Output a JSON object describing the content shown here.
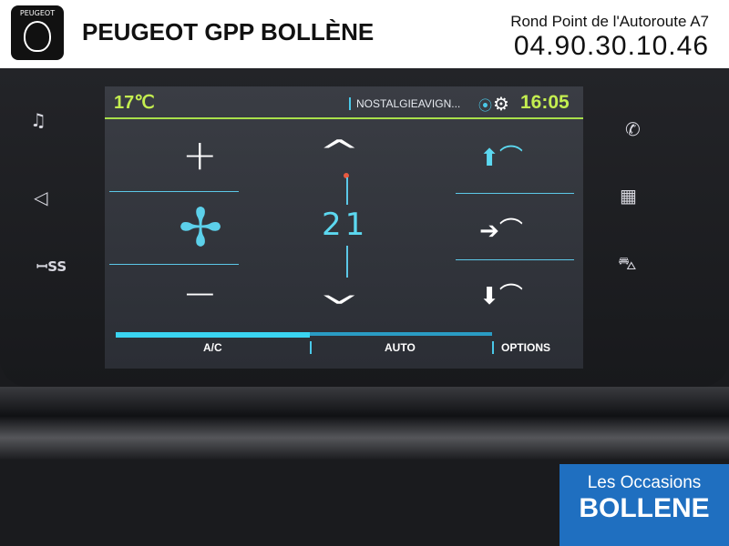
{
  "overlay": {
    "brand": "PEUGEOT GPP BOLLÈNE",
    "logo_text": "PEUGEOT",
    "address": "Rond Point de l'Autoroute A7",
    "phone": "04.90.30.10.46",
    "badge_line1": "Les Occasions",
    "badge_line2": "BOLLENE",
    "badge_color": "#1f6fc0"
  },
  "status": {
    "outside_temp": "17℃",
    "radio": "NOSTALGIEAVIGN...",
    "time": "16:05",
    "accent": "#c4ee50"
  },
  "climate": {
    "plus": "+",
    "minus": "−",
    "setpoint": "21",
    "icons": [
      "fan-icon",
      "chevron-up-icon",
      "chevron-down-icon",
      "air-windshield-icon",
      "air-face-icon",
      "air-feet-icon"
    ]
  },
  "tabs": [
    {
      "label": "A/C"
    },
    {
      "label": "AUTO"
    },
    {
      "label": "OPTIONS"
    }
  ],
  "side_icons": [
    "music-icon",
    "navigation-icon",
    "apps-icon",
    "phone-icon",
    "grid-icon",
    "car-icon"
  ]
}
